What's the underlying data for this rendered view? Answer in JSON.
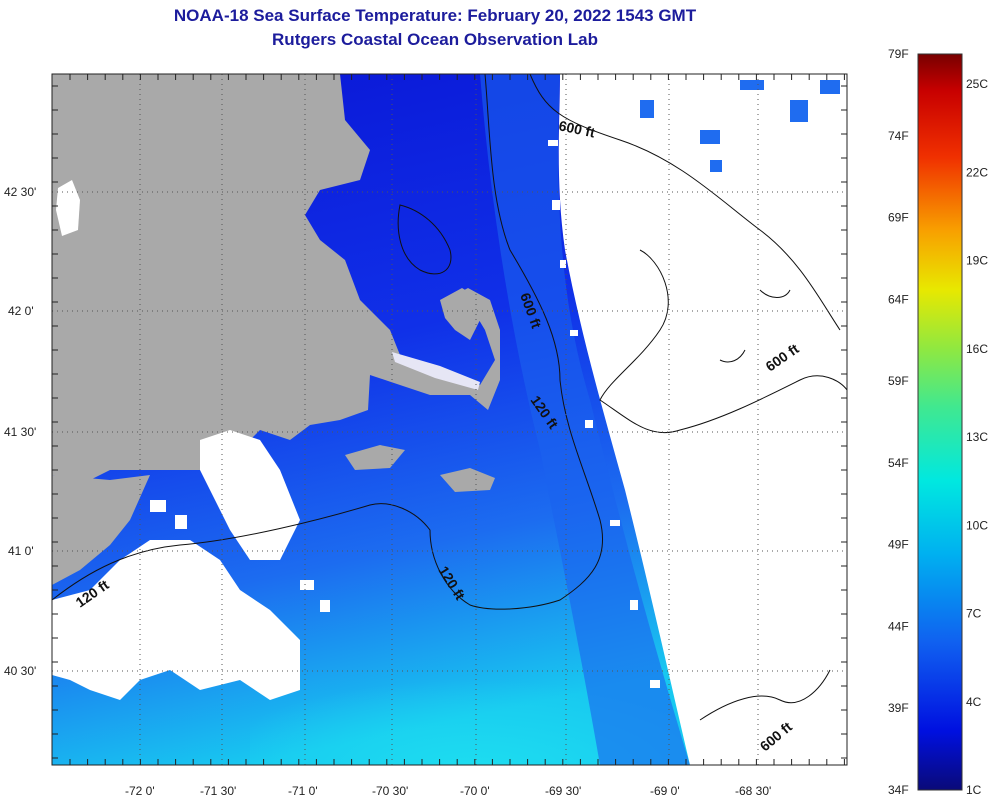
{
  "header": {
    "title": "NOAA-18 Sea Surface Temperature:  February 20, 2022 1543 GMT",
    "subtitle": "Rutgers Coastal Ocean Observation Lab"
  },
  "axes": {
    "x_ticks": [
      "-72 0'",
      "-71 30'",
      "-71 0'",
      "-70 30'",
      "-70 0'",
      "-69 30'",
      "-69 0'",
      "-68 30'"
    ],
    "y_ticks": [
      "42 30'",
      "42 0'",
      "41 30'",
      "41 0'",
      "40 30'"
    ]
  },
  "contours": [
    {
      "label": "600 ft"
    },
    {
      "label": "600 ft"
    },
    {
      "label": "600 ft"
    },
    {
      "label": "600 ft"
    },
    {
      "label": "120 ft"
    },
    {
      "label": "120 ft"
    },
    {
      "label": "120 ft"
    }
  ],
  "colorbar": {
    "fahrenheit": [
      "79F",
      "74F",
      "69F",
      "64F",
      "59F",
      "54F",
      "49F",
      "44F",
      "39F",
      "34F"
    ],
    "celsius": [
      "25C",
      "22C",
      "19C",
      "16C",
      "13C",
      "10C",
      "7C",
      "4C",
      "1C"
    ]
  },
  "colors": {
    "land": "#a9a9a9",
    "cloud": "#ffffff",
    "sea_cold": "#0a14d8",
    "sea_mid": "#1c4cf0",
    "sea_warm": "#1fa0f0",
    "title": "#1c1c9c"
  }
}
